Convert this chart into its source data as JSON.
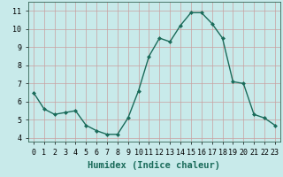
{
  "x": [
    0,
    1,
    2,
    3,
    4,
    5,
    6,
    7,
    8,
    9,
    10,
    11,
    12,
    13,
    14,
    15,
    16,
    17,
    18,
    19,
    20,
    21,
    22,
    23
  ],
  "y": [
    6.5,
    5.6,
    5.3,
    5.4,
    5.5,
    4.7,
    4.4,
    4.2,
    4.2,
    5.1,
    6.6,
    8.5,
    9.5,
    9.3,
    10.2,
    10.9,
    10.9,
    10.3,
    9.5,
    7.1,
    7.0,
    5.3,
    5.1,
    4.7
  ],
  "line_color": "#1a6b5a",
  "marker": "D",
  "marker_size": 2.0,
  "bg_color": "#c8eaea",
  "grid_major_color": "#c8a0a0",
  "xlabel": "Humidex (Indice chaleur)",
  "xlabel_fontsize": 7.5,
  "xlim": [
    -0.5,
    23.5
  ],
  "ylim": [
    3.8,
    11.5
  ],
  "yticks": [
    4,
    5,
    6,
    7,
    8,
    9,
    10,
    11
  ],
  "xticks": [
    0,
    1,
    2,
    3,
    4,
    5,
    6,
    7,
    8,
    9,
    10,
    11,
    12,
    13,
    14,
    15,
    16,
    17,
    18,
    19,
    20,
    21,
    22,
    23
  ],
  "tick_fontsize": 6.0,
  "line_width": 1.0,
  "xlabel_color": "#1a6b5a"
}
